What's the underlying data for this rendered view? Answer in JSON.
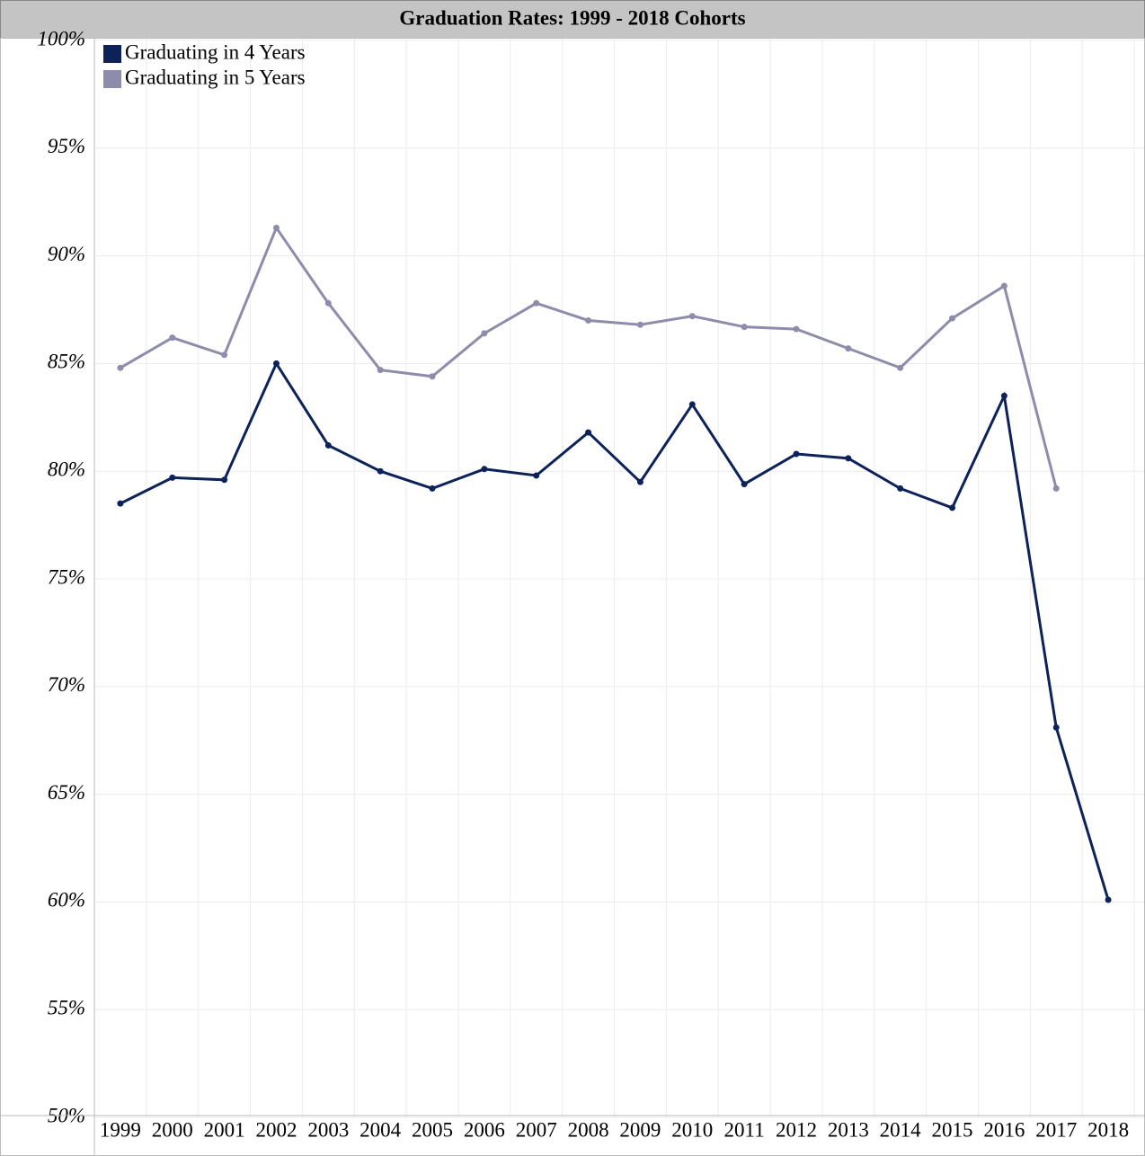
{
  "chart_data": {
    "type": "line",
    "title": "Graduation Rates: 1999 - 2018 Cohorts",
    "categories": [
      "1999",
      "2000",
      "2001",
      "2002",
      "2003",
      "2004",
      "2005",
      "2006",
      "2007",
      "2008",
      "2009",
      "2010",
      "2011",
      "2012",
      "2013",
      "2014",
      "2015",
      "2016",
      "2017",
      "2018"
    ],
    "series": [
      {
        "name": "Graduating in 4 Years",
        "color": "#0c2259",
        "values": [
          78.5,
          79.7,
          79.6,
          85.0,
          81.2,
          80.0,
          79.2,
          80.1,
          79.8,
          81.8,
          79.5,
          83.1,
          79.4,
          80.8,
          80.6,
          79.2,
          78.3,
          83.5,
          68.1,
          60.1
        ]
      },
      {
        "name": "Graduating in 5 Years",
        "color": "#8e8cab",
        "values": [
          84.8,
          86.2,
          85.4,
          91.3,
          87.8,
          84.7,
          84.4,
          86.4,
          87.8,
          87.0,
          86.8,
          87.2,
          86.7,
          86.6,
          85.7,
          84.8,
          87.1,
          88.6,
          79.2,
          null
        ]
      }
    ],
    "ylim": [
      50,
      100
    ],
    "yticks": [
      {
        "value": 50,
        "label": "50%"
      },
      {
        "value": 55,
        "label": "55%"
      },
      {
        "value": 60,
        "label": "60%"
      },
      {
        "value": 65,
        "label": "65%"
      },
      {
        "value": 70,
        "label": "70%"
      },
      {
        "value": 75,
        "label": "75%"
      },
      {
        "value": 80,
        "label": "80%"
      },
      {
        "value": 85,
        "label": "85%"
      },
      {
        "value": 90,
        "label": "90%"
      },
      {
        "value": 95,
        "label": "95%"
      },
      {
        "value": 100,
        "label": "100%"
      }
    ],
    "grid": true,
    "legend": "top-left"
  }
}
